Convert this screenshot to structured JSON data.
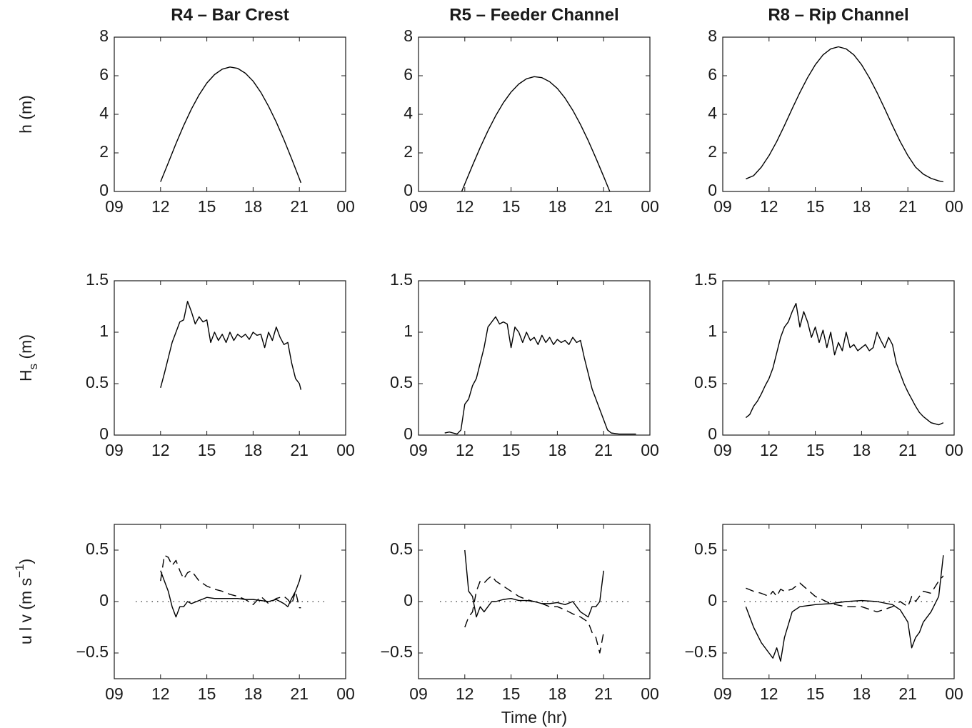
{
  "chart_data": [
    {
      "type": "line",
      "title": "R4 – Bar Crest",
      "ylabel": [
        {
          "text": "h (m)"
        }
      ],
      "x": [
        12,
        12.5,
        13,
        13.5,
        14,
        14.5,
        15,
        15.5,
        16,
        16.5,
        17,
        17.5,
        18,
        18.5,
        19,
        19.5,
        20,
        20.5,
        21,
        21.1
      ],
      "series": [
        {
          "color": "#000000",
          "style": "solid",
          "values": [
            0.5,
            1.48,
            2.48,
            3.42,
            4.27,
            5.01,
            5.62,
            6.06,
            6.34,
            6.45,
            6.38,
            6.13,
            5.72,
            5.14,
            4.42,
            3.6,
            2.68,
            1.69,
            0.66,
            0.45
          ]
        }
      ],
      "xlim": [
        9,
        24
      ],
      "xticks": [
        {
          "value": 9,
          "label": "09"
        },
        12,
        15,
        18,
        21,
        {
          "value": 24,
          "label": "00"
        }
      ],
      "ylim": [
        0,
        8
      ],
      "yticks": [
        0,
        2,
        4,
        6,
        8
      ]
    },
    {
      "type": "line",
      "title": "R5 – Feeder Channel",
      "x": [
        11.8,
        12,
        12.5,
        13,
        13.5,
        14,
        14.5,
        15,
        15.5,
        16,
        16.5,
        17,
        17.5,
        18,
        18.5,
        19,
        19.5,
        20,
        20.5,
        21,
        21.4
      ],
      "series": [
        {
          "color": "#000000",
          "style": "solid",
          "values": [
            0,
            0.39,
            1.35,
            2.28,
            3.14,
            3.92,
            4.6,
            5.15,
            5.57,
            5.84,
            5.95,
            5.9,
            5.69,
            5.34,
            4.84,
            4.21,
            3.47,
            2.64,
            1.73,
            0.78,
            0
          ]
        }
      ],
      "xlim": [
        9,
        24
      ],
      "xticks": [
        {
          "value": 9,
          "label": "09"
        },
        12,
        15,
        18,
        21,
        {
          "value": 24,
          "label": "00"
        }
      ],
      "ylim": [
        0,
        8
      ],
      "yticks": [
        0,
        2,
        4,
        6,
        8
      ]
    },
    {
      "type": "line",
      "title": "R8 – Rip Channel",
      "x": [
        10.5,
        11,
        11.5,
        12,
        12.5,
        13,
        13.5,
        14,
        14.5,
        15,
        15.5,
        16,
        16.5,
        17,
        17.5,
        18,
        18.5,
        19,
        19.5,
        20,
        20.5,
        21,
        21.5,
        22,
        22.5,
        23,
        23.3
      ],
      "series": [
        {
          "color": "#000000",
          "style": "solid",
          "values": [
            0.65,
            0.82,
            1.26,
            1.86,
            2.59,
            3.42,
            4.29,
            5.13,
            5.9,
            6.57,
            7.08,
            7.39,
            7.5,
            7.39,
            7.08,
            6.57,
            5.9,
            5.13,
            4.29,
            3.42,
            2.59,
            1.86,
            1.26,
            0.9,
            0.68,
            0.55,
            0.5
          ]
        }
      ],
      "xlim": [
        9,
        24
      ],
      "xticks": [
        {
          "value": 9,
          "label": "09"
        },
        12,
        15,
        18,
        21,
        {
          "value": 24,
          "label": "00"
        }
      ],
      "ylim": [
        0,
        8
      ],
      "yticks": [
        0,
        2,
        4,
        6,
        8
      ]
    },
    {
      "type": "line",
      "ylabel": [
        {
          "text": "H"
        },
        {
          "text": "s",
          "shift": "sub"
        },
        {
          "text": " (m)"
        }
      ],
      "x": [
        12,
        12.25,
        12.5,
        12.75,
        13,
        13.25,
        13.5,
        13.75,
        14,
        14.25,
        14.5,
        14.75,
        15,
        15.25,
        15.5,
        15.75,
        16,
        16.25,
        16.5,
        16.75,
        17,
        17.25,
        17.5,
        17.75,
        18,
        18.25,
        18.5,
        18.75,
        19,
        19.25,
        19.5,
        19.75,
        20,
        20.25,
        20.5,
        20.75,
        21,
        21.1
      ],
      "series": [
        {
          "color": "#000000",
          "style": "solid",
          "values": [
            0.46,
            0.6,
            0.75,
            0.9,
            1.0,
            1.1,
            1.12,
            1.3,
            1.2,
            1.08,
            1.15,
            1.1,
            1.12,
            0.9,
            1.0,
            0.92,
            0.98,
            0.9,
            1.0,
            0.92,
            0.98,
            0.95,
            0.98,
            0.93,
            1.0,
            0.97,
            0.98,
            0.85,
            1.0,
            0.92,
            1.05,
            0.95,
            0.88,
            0.9,
            0.7,
            0.55,
            0.5,
            0.44
          ]
        }
      ],
      "xlim": [
        9,
        24
      ],
      "xticks": [
        {
          "value": 9,
          "label": "09"
        },
        12,
        15,
        18,
        21,
        {
          "value": 24,
          "label": "00"
        }
      ],
      "ylim": [
        0,
        1.5
      ],
      "yticks": [
        0,
        0.5,
        1,
        1.5
      ]
    },
    {
      "type": "line",
      "x": [
        10.7,
        11,
        11.25,
        11.5,
        11.75,
        12,
        12.25,
        12.5,
        12.75,
        13,
        13.25,
        13.5,
        13.75,
        14,
        14.25,
        14.5,
        14.75,
        15,
        15.25,
        15.5,
        15.75,
        16,
        16.25,
        16.5,
        16.75,
        17,
        17.25,
        17.5,
        17.75,
        18,
        18.25,
        18.5,
        18.75,
        19,
        19.25,
        19.5,
        19.75,
        20,
        20.25,
        20.5,
        20.75,
        21,
        21.25,
        21.5,
        22,
        23.1
      ],
      "series": [
        {
          "color": "#000000",
          "style": "solid",
          "values": [
            0.02,
            0.03,
            0.02,
            0.01,
            0.05,
            0.3,
            0.35,
            0.48,
            0.55,
            0.7,
            0.85,
            1.05,
            1.1,
            1.15,
            1.08,
            1.1,
            1.08,
            0.85,
            1.05,
            1.0,
            0.9,
            1.0,
            0.92,
            0.95,
            0.88,
            0.97,
            0.9,
            0.95,
            0.88,
            0.93,
            0.9,
            0.92,
            0.88,
            0.95,
            0.9,
            0.92,
            0.75,
            0.6,
            0.45,
            0.35,
            0.25,
            0.15,
            0.05,
            0.02,
            0.01,
            0.01
          ]
        }
      ],
      "xlim": [
        9,
        24
      ],
      "xticks": [
        {
          "value": 9,
          "label": "09"
        },
        12,
        15,
        18,
        21,
        {
          "value": 24,
          "label": "00"
        }
      ],
      "ylim": [
        0,
        1.5
      ],
      "yticks": [
        0,
        0.5,
        1,
        1.5
      ]
    },
    {
      "type": "line",
      "x": [
        10.5,
        10.75,
        11,
        11.25,
        11.5,
        11.75,
        12,
        12.25,
        12.5,
        12.75,
        13,
        13.25,
        13.5,
        13.75,
        14,
        14.25,
        14.5,
        14.75,
        15,
        15.25,
        15.5,
        15.75,
        16,
        16.25,
        16.5,
        16.75,
        17,
        17.25,
        17.5,
        17.75,
        18,
        18.25,
        18.5,
        18.75,
        19,
        19.25,
        19.5,
        19.75,
        20,
        20.25,
        20.5,
        20.75,
        21,
        21.25,
        21.5,
        21.75,
        22,
        22.5,
        23,
        23.3
      ],
      "series": [
        {
          "color": "#000000",
          "style": "solid",
          "values": [
            0.17,
            0.2,
            0.28,
            0.33,
            0.4,
            0.48,
            0.55,
            0.65,
            0.8,
            0.95,
            1.05,
            1.1,
            1.2,
            1.28,
            1.05,
            1.2,
            1.1,
            0.95,
            1.05,
            0.9,
            1.02,
            0.85,
            1.0,
            0.78,
            0.9,
            0.82,
            1.0,
            0.85,
            0.88,
            0.82,
            0.85,
            0.88,
            0.82,
            0.85,
            1.0,
            0.92,
            0.85,
            0.95,
            0.88,
            0.7,
            0.6,
            0.5,
            0.42,
            0.35,
            0.28,
            0.22,
            0.18,
            0.12,
            0.1,
            0.12
          ]
        }
      ],
      "xlim": [
        9,
        24
      ],
      "xticks": [
        {
          "value": 9,
          "label": "09"
        },
        12,
        15,
        18,
        21,
        {
          "value": 24,
          "label": "00"
        }
      ],
      "ylim": [
        0,
        1.5
      ],
      "yticks": [
        0,
        0.5,
        1,
        1.5
      ]
    },
    {
      "type": "line",
      "ylabel": [
        {
          "text": "u l v (m s"
        },
        {
          "text": "−1",
          "shift": "super"
        },
        {
          "text": ")"
        }
      ],
      "hline": 0,
      "x": [
        12,
        12.25,
        12.5,
        12.75,
        13,
        13.25,
        13.5,
        13.75,
        14,
        14.5,
        15,
        15.5,
        16,
        16.5,
        17,
        17.5,
        18,
        18.5,
        19,
        19.5,
        20,
        20.25,
        20.5,
        20.75,
        21,
        21.1
      ],
      "series": [
        {
          "color": "#000000",
          "style": "solid",
          "values": [
            0.3,
            0.2,
            0.1,
            -0.05,
            -0.15,
            -0.05,
            -0.05,
            0,
            -0.02,
            0.01,
            0.04,
            0.03,
            0.03,
            0.03,
            0.03,
            0.02,
            0.02,
            0.01,
            0,
            0.02,
            -0.02,
            -0.05,
            0.03,
            0.1,
            0.2,
            0.26
          ]
        },
        {
          "color": "#000000",
          "style": "dashed",
          "values": [
            0.2,
            0.45,
            0.43,
            0.35,
            0.4,
            0.3,
            0.22,
            0.28,
            0.3,
            0.2,
            0.15,
            0.12,
            0.1,
            0.07,
            0.05,
            0.02,
            -0.03,
            0.05,
            -0.02,
            0.03,
            0.05,
            0.02,
            -0.03,
            0.1,
            -0.06,
            -0.06
          ]
        }
      ],
      "xlim": [
        9,
        24
      ],
      "xticks": [
        {
          "value": 9,
          "label": "09"
        },
        12,
        15,
        18,
        21,
        {
          "value": 24,
          "label": "00"
        }
      ],
      "ylim": [
        -0.75,
        0.75
      ],
      "yticks": [
        {
          "value": -0.5,
          "label": "−0.5"
        },
        0,
        0.5
      ]
    },
    {
      "type": "line",
      "xlabel": "Time (hr)",
      "hline": 0,
      "x": [
        12,
        12.25,
        12.5,
        12.75,
        13,
        13.25,
        13.5,
        13.75,
        14,
        14.5,
        15,
        15.5,
        16,
        16.5,
        17,
        17.5,
        18,
        18.5,
        19,
        19.5,
        20,
        20.25,
        20.5,
        20.75,
        21
      ],
      "series": [
        {
          "color": "#000000",
          "style": "solid",
          "values": [
            0.5,
            0.1,
            0.05,
            -0.15,
            -0.05,
            -0.1,
            -0.05,
            0,
            0,
            0.02,
            0.03,
            0.01,
            0.01,
            0,
            -0.02,
            -0.02,
            -0.01,
            -0.03,
            0,
            -0.1,
            -0.15,
            -0.05,
            -0.05,
            0,
            0.3
          ]
        },
        {
          "color": "#000000",
          "style": "dashed",
          "values": [
            -0.25,
            -0.15,
            -0.1,
            0.1,
            0.2,
            0.18,
            0.22,
            0.25,
            0.2,
            0.15,
            0.1,
            0.05,
            0.02,
            0,
            -0.02,
            -0.05,
            -0.05,
            -0.08,
            -0.12,
            -0.15,
            -0.2,
            -0.3,
            -0.35,
            -0.5,
            -0.3
          ]
        }
      ],
      "xlim": [
        9,
        24
      ],
      "xticks": [
        {
          "value": 9,
          "label": "09"
        },
        12,
        15,
        18,
        21,
        {
          "value": 24,
          "label": "00"
        }
      ],
      "ylim": [
        -0.75,
        0.75
      ],
      "yticks": [
        {
          "value": -0.5,
          "label": "−0.5"
        },
        0,
        0.5
      ]
    },
    {
      "type": "line",
      "hline": 0,
      "x": [
        10.5,
        11,
        11.5,
        12,
        12.25,
        12.5,
        12.75,
        13,
        13.5,
        14,
        15,
        16,
        17,
        18,
        19,
        20,
        20.5,
        21,
        21.25,
        21.5,
        21.75,
        22,
        22.5,
        23,
        23.3
      ],
      "series": [
        {
          "color": "#000000",
          "style": "solid",
          "values": [
            -0.05,
            -0.25,
            -0.4,
            -0.5,
            -0.55,
            -0.45,
            -0.58,
            -0.35,
            -0.1,
            -0.05,
            -0.03,
            -0.02,
            0,
            0.01,
            0,
            -0.03,
            -0.08,
            -0.2,
            -0.45,
            -0.35,
            -0.3,
            -0.2,
            -0.1,
            0.05,
            0.45
          ]
        },
        {
          "color": "#000000",
          "style": "dashed",
          "values": [
            0.13,
            0.1,
            0.08,
            0.05,
            0.1,
            0.05,
            0.12,
            0.1,
            0.12,
            0.18,
            0.05,
            -0.02,
            -0.05,
            -0.05,
            -0.1,
            -0.05,
            0,
            -0.05,
            0.05,
            0,
            0.05,
            0.1,
            0.08,
            0.2,
            0.25
          ]
        }
      ],
      "xlim": [
        9,
        24
      ],
      "xticks": [
        {
          "value": 9,
          "label": "09"
        },
        12,
        15,
        18,
        21,
        {
          "value": 24,
          "label": "00"
        }
      ],
      "ylim": [
        -0.75,
        0.75
      ],
      "yticks": [
        {
          "value": -0.5,
          "label": "−0.5"
        },
        0,
        0.5
      ]
    }
  ]
}
